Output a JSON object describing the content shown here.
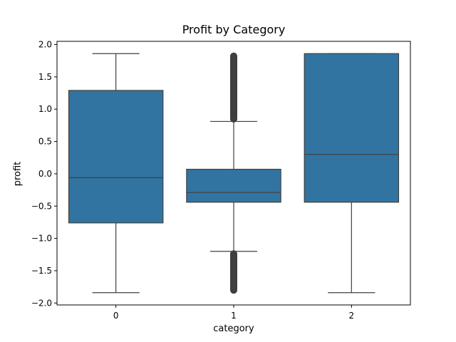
{
  "chart_data": {
    "type": "box",
    "title": "Profit by Category",
    "xlabel": "category",
    "ylabel": "profit",
    "categories": [
      "0",
      "1",
      "2"
    ],
    "ylim": [
      -2.03,
      2.05
    ],
    "yticks": [
      -2.0,
      -1.5,
      -1.0,
      -0.5,
      0.0,
      0.5,
      1.0,
      1.5,
      2.0
    ],
    "ytick_labels": [
      "−2.0",
      "−1.5",
      "−1.0",
      "−0.5",
      "0.0",
      "0.5",
      "1.0",
      "1.5",
      "2.0"
    ],
    "grid": false,
    "color": "#3274a1",
    "line_color": "#3f3f3f",
    "boxes": [
      {
        "category": "0",
        "whisker_low": -1.84,
        "q1": -0.76,
        "median": -0.06,
        "q3": 1.29,
        "whisker_high": 1.86,
        "outliers_low": [],
        "outliers_high": []
      },
      {
        "category": "1",
        "whisker_low": -1.2,
        "q1": -0.44,
        "median": -0.29,
        "q3": 0.07,
        "whisker_high": 0.81,
        "outliers_low": [
          -1.2,
          -1.84
        ],
        "outliers_high": [
          0.81,
          1.86
        ]
      },
      {
        "category": "2",
        "whisker_low": -1.84,
        "q1": -0.44,
        "median": 0.3,
        "q3": 1.86,
        "whisker_high": 1.86,
        "outliers_low": [],
        "outliers_high": []
      }
    ]
  }
}
